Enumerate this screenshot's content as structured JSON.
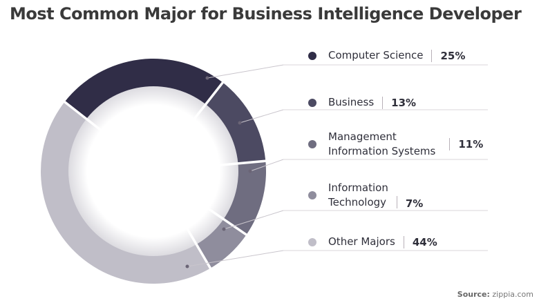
{
  "chart_data": {
    "type": "pie",
    "variant": "donut",
    "title": "Most Common Major for Business Intelligence Developer",
    "categories": [
      "Computer Science",
      "Business",
      "Management Information Systems",
      "Information Technology",
      "Other Majors"
    ],
    "legend_lines": [
      [
        "Computer Science"
      ],
      [
        "Business"
      ],
      [
        "Management",
        "Information Systems"
      ],
      [
        "Information",
        "Technology"
      ],
      [
        "Other Majors"
      ]
    ],
    "values": [
      25,
      13,
      11,
      7,
      44
    ],
    "labels": [
      "25%",
      "13%",
      "11%",
      "7%",
      "44%"
    ],
    "colors": [
      "#302d47",
      "#4c4a62",
      "#6f6d80",
      "#8f8d9d",
      "#c0bec8"
    ],
    "legend_placement": "right"
  },
  "source": {
    "label": "Source:",
    "value": "zippia.com"
  }
}
